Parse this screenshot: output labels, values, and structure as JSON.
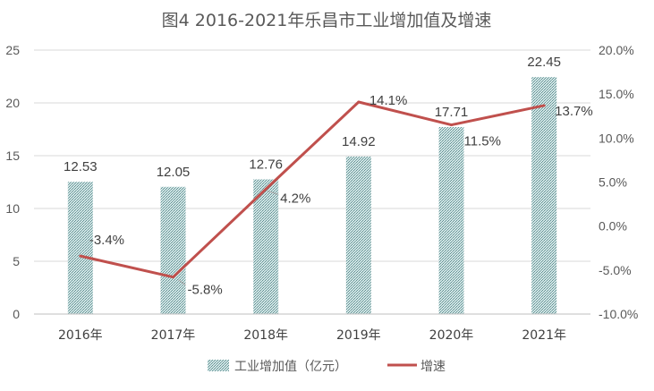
{
  "chart_data": {
    "type": "bar+line",
    "title": "图4  2016-2021年乐昌市工业增加值及增速",
    "categories": [
      "2016年",
      "2017年",
      "2018年",
      "2019年",
      "2020年",
      "2021年"
    ],
    "series": [
      {
        "name": "工业增加值（亿元）",
        "type": "bar",
        "axis": "left",
        "values": [
          12.53,
          12.05,
          12.76,
          14.92,
          17.71,
          22.45
        ],
        "labels": [
          "12.53",
          "12.05",
          "12.76",
          "14.92",
          "17.71",
          "22.45"
        ],
        "color": "#6a9a9c"
      },
      {
        "name": "增速",
        "type": "line",
        "axis": "right",
        "values": [
          -3.4,
          -5.8,
          4.2,
          14.1,
          11.5,
          13.7
        ],
        "labels": [
          "-3.4%",
          "-5.8%",
          "4.2%",
          "14.1%",
          "11.5%",
          "13.7%"
        ],
        "color": "#c0504d"
      }
    ],
    "y_left": {
      "min": 0,
      "max": 25,
      "step": 5,
      "ticks": [
        "0",
        "5",
        "10",
        "15",
        "20",
        "25"
      ]
    },
    "y_right": {
      "min": -10,
      "max": 20,
      "step": 5,
      "ticks": [
        "-10.0%",
        "-5.0%",
        "0.0%",
        "5.0%",
        "10.0%",
        "15.0%",
        "20.0%"
      ]
    },
    "grid": true,
    "legend_position": "bottom"
  }
}
